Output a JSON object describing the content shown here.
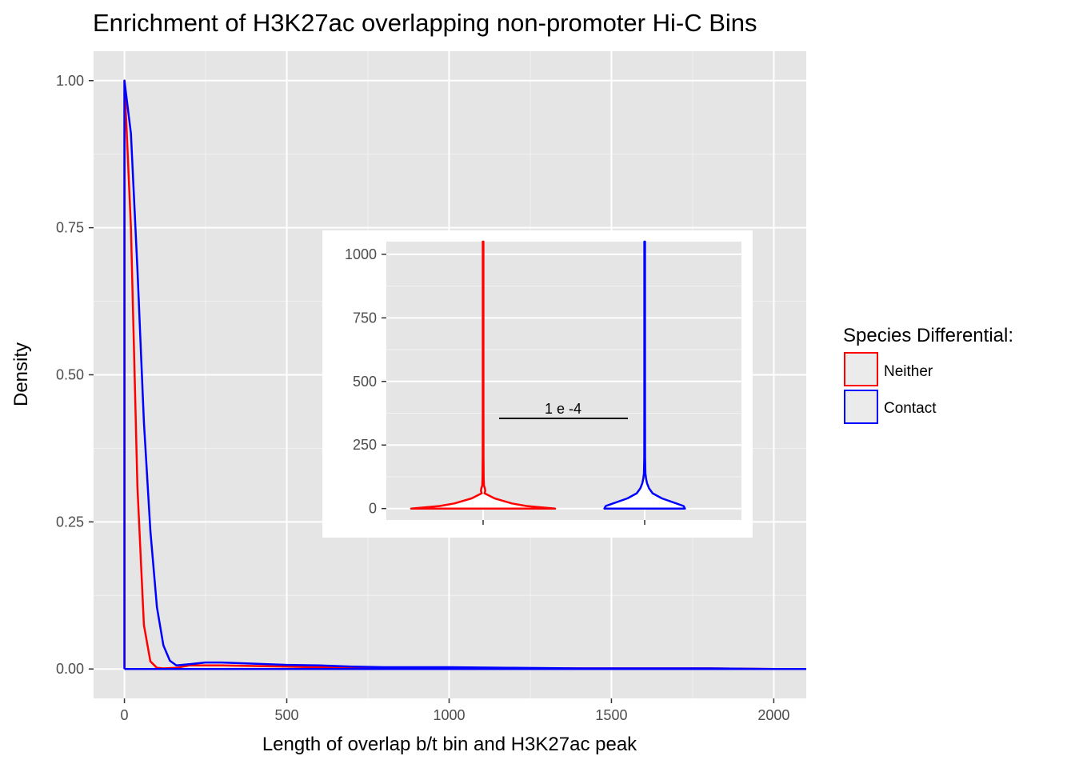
{
  "chart_data": [
    {
      "type": "line",
      "title": "Enrichment of H3K27ac overlapping non-promoter Hi-C Bins",
      "xlabel": "Length of overlap b/t bin and H3K27ac peak",
      "ylabel": "Density",
      "xlim": [
        -95,
        2100
      ],
      "ylim": [
        -0.05,
        1.05
      ],
      "x_ticks": [
        0,
        500,
        1000,
        1500,
        2000
      ],
      "y_ticks": [
        0.0,
        0.25,
        0.5,
        0.75,
        1.0
      ],
      "x_tick_labels": [
        "0",
        "500",
        "1000",
        "1500",
        "2000"
      ],
      "y_tick_labels": [
        "0.00",
        "0.25",
        "0.50",
        "0.75",
        "1.00"
      ],
      "grid": true,
      "legend": {
        "title": "Species Differential:",
        "position": "right",
        "entries": [
          "Neither",
          "Contact"
        ]
      },
      "series": [
        {
          "name": "Neither",
          "color": "#ff0000",
          "x": [
            0,
            0,
            20,
            40,
            60,
            80,
            100,
            120,
            160,
            200,
            300,
            400,
            500,
            600,
            700,
            800,
            1000,
            1200,
            1400,
            1600,
            1800,
            2000,
            2100
          ],
          "y": [
            0,
            1.0,
            0.75,
            0.31,
            0.075,
            0.013,
            0.002,
            0.001,
            0.002,
            0.006,
            0.006,
            0.005,
            0.004,
            0.003,
            0.003,
            0.002,
            0.002,
            0.001,
            0.001,
            0.001,
            0.001,
            0.0,
            0.0
          ]
        },
        {
          "name": "Contact",
          "color": "#0000ff",
          "x": [
            0,
            0,
            20,
            40,
            60,
            80,
            100,
            120,
            140,
            160,
            200,
            250,
            300,
            400,
            500,
            600,
            700,
            800,
            1000,
            1200,
            1400,
            1600,
            1800,
            2000,
            2100
          ],
          "y": [
            0,
            1.0,
            0.91,
            0.68,
            0.42,
            0.235,
            0.105,
            0.04,
            0.014,
            0.006,
            0.008,
            0.011,
            0.011,
            0.009,
            0.007,
            0.006,
            0.004,
            0.003,
            0.003,
            0.002,
            0.001,
            0.001,
            0.001,
            0.0,
            0.0
          ]
        }
      ]
    },
    {
      "type": "violin",
      "ylim": [
        -45,
        1050
      ],
      "y_ticks": [
        0,
        250,
        500,
        750,
        1000
      ],
      "y_tick_labels": [
        "0",
        "250",
        "500",
        "750",
        "1000"
      ],
      "categories": [
        "Neither",
        "Contact"
      ],
      "grid": true,
      "annotation": "1 e -4",
      "series": [
        {
          "name": "Neither",
          "color": "#ff0000",
          "y": [
            0,
            5,
            10,
            20,
            40,
            60,
            70,
            80,
            90,
            120,
            200,
            400,
            700,
            1050
          ],
          "half_width": [
            0.5,
            0.4,
            0.3,
            0.2,
            0.08,
            0.01,
            0.015,
            0.012,
            0.006,
            0.004,
            0.003,
            0.002,
            0.002,
            0.002
          ]
        },
        {
          "name": "Contact",
          "color": "#0000ff",
          "y": [
            0,
            10,
            20,
            40,
            60,
            80,
            100,
            120,
            140,
            200,
            400,
            700,
            1050
          ],
          "half_width": [
            0.28,
            0.27,
            0.22,
            0.12,
            0.055,
            0.03,
            0.016,
            0.009,
            0.005,
            0.003,
            0.002,
            0.002,
            0.002
          ]
        }
      ]
    }
  ]
}
